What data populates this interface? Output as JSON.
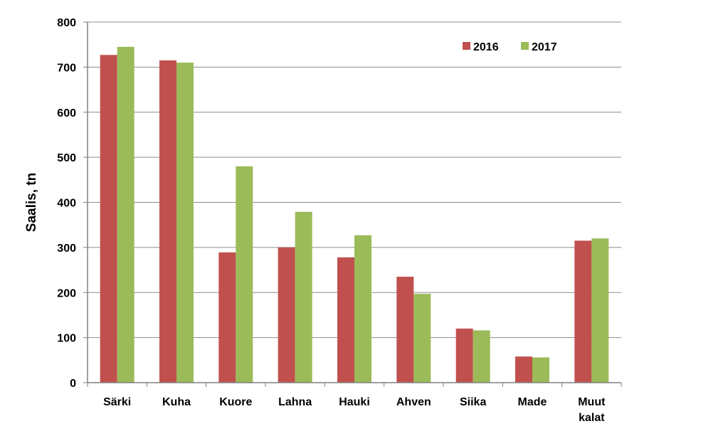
{
  "chart_data": {
    "type": "bar",
    "title": "",
    "xlabel": "",
    "ylabel": "Saalis, tn",
    "ylim": [
      0,
      800
    ],
    "yticks": [
      0,
      100,
      200,
      300,
      400,
      500,
      600,
      700,
      800
    ],
    "grid": true,
    "legend_position": "top-right",
    "categories": [
      [
        "Särki"
      ],
      [
        "Kuha"
      ],
      [
        "Kuore"
      ],
      [
        "Lahna"
      ],
      [
        "Hauki"
      ],
      [
        "Ahven"
      ],
      [
        "Siika"
      ],
      [
        "Made"
      ],
      [
        "Muut",
        "kalat"
      ]
    ],
    "series": [
      {
        "name": "2016",
        "color": "#C0504D",
        "values": [
          727,
          715,
          289,
          300,
          278,
          235,
          120,
          58,
          315
        ]
      },
      {
        "name": "2017",
        "color": "#9BBB59",
        "values": [
          745,
          710,
          480,
          379,
          327,
          197,
          116,
          56,
          320
        ]
      }
    ]
  }
}
